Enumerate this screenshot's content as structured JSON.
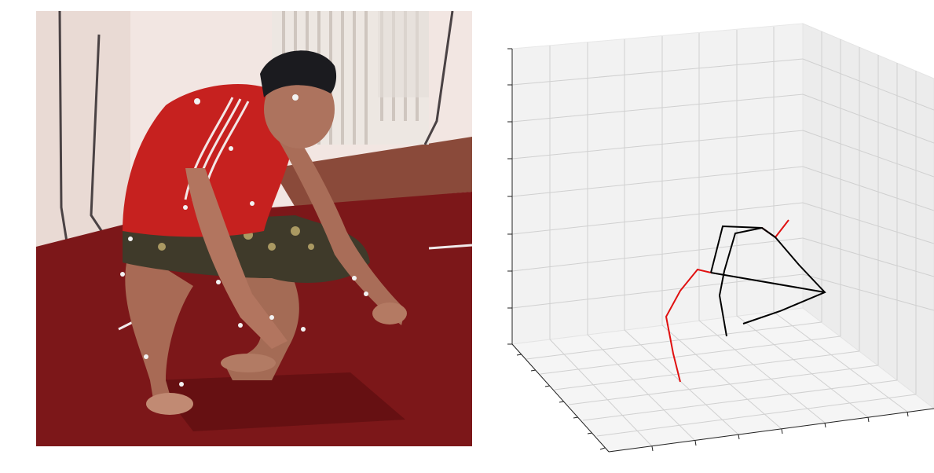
{
  "figure": {
    "left_panel": {
      "content": "photo",
      "colors": {
        "wall": "#f1e3df",
        "carpet": "#7d1618",
        "shirt": "#c8201e",
        "cap": "#1b1b1f",
        "skin": "#b77a62",
        "radiator": "#efeae6"
      }
    },
    "right_panel": {
      "content": "3d-skeleton-plot",
      "axis_tick_labels_visible": false,
      "grid": true,
      "colors": {
        "pane_left": "#f2f2f2",
        "pane_back": "#f0f0f0",
        "pane_floor": "#f4f4f4",
        "grid": "#d0d0d0",
        "right_side": "#e01010",
        "left_side_and_torso": "#000000"
      }
    }
  }
}
